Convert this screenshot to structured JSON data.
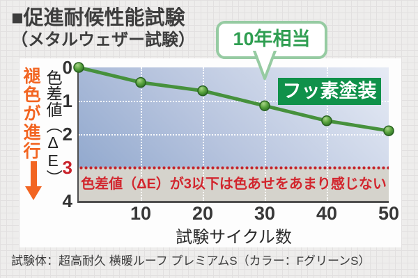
{
  "page": {
    "title_line1": "■促進耐候性能試験",
    "title_line2": "（メタルウェザー試験）",
    "caption": "試験体：超高耐久 横暖ルーフ プレミアムS（カラー：FグリーンS）"
  },
  "chart": {
    "fade_label": "褪色が進行",
    "y_label": "色差値（ΔE）",
    "x_label": "試験サイクル数",
    "series_tag": "フッ素塗装",
    "callout": "10年相当",
    "threshold_note": "色差値（ΔE）が3以下は色あせをあまり感じない"
  },
  "colors": {
    "series_tag_green": "#10914a",
    "callout_green": "#2f9e51",
    "callout_border": "#96cba2",
    "line_green": "#46913c",
    "marker_dark_green": "#27611f",
    "warn_orange": "#f26522",
    "threshold_red": "#c4242c",
    "note_red": "#d2262e",
    "plot_gradient_light": "#e6ebf5",
    "plot_gradient_dark": "#8ba4cb",
    "below_threshold_gray": "#d5d3cc"
  },
  "chart_data": {
    "type": "line",
    "title": "促進耐候性能試験（メタルウェザー試験）",
    "xlabel": "試験サイクル数",
    "ylabel": "色差値（ΔE）",
    "x": [
      0,
      10,
      20,
      30,
      40,
      50
    ],
    "series": [
      {
        "name": "フッ素塗装",
        "values": [
          0,
          0.45,
          0.7,
          1.15,
          1.6,
          1.9
        ]
      }
    ],
    "xlim": [
      0,
      50
    ],
    "ylim": [
      0,
      4
    ],
    "y_axis_inverted": true,
    "x_ticks": [
      {
        "label": "10",
        "value": 10
      },
      {
        "label": "20",
        "value": 20
      },
      {
        "label": "30",
        "value": 30
      },
      {
        "label": "40",
        "value": 40
      },
      {
        "label": "50",
        "value": 50
      }
    ],
    "y_ticks": [
      {
        "label": "0",
        "value": 0
      },
      {
        "label": "1",
        "value": 1
      },
      {
        "label": "2",
        "value": 2
      },
      {
        "label": "3",
        "value": 3,
        "emphasis": "red"
      },
      {
        "label": "4",
        "value": 4
      }
    ],
    "gridlines": {
      "x": [
        10,
        20,
        30,
        40
      ],
      "y": [
        1,
        2
      ]
    },
    "threshold": {
      "value": 3,
      "note": "色差値（ΔE）が3以下は色あせをあまり感じない"
    },
    "annotation": {
      "x": 30,
      "label": "10年相当"
    }
  }
}
